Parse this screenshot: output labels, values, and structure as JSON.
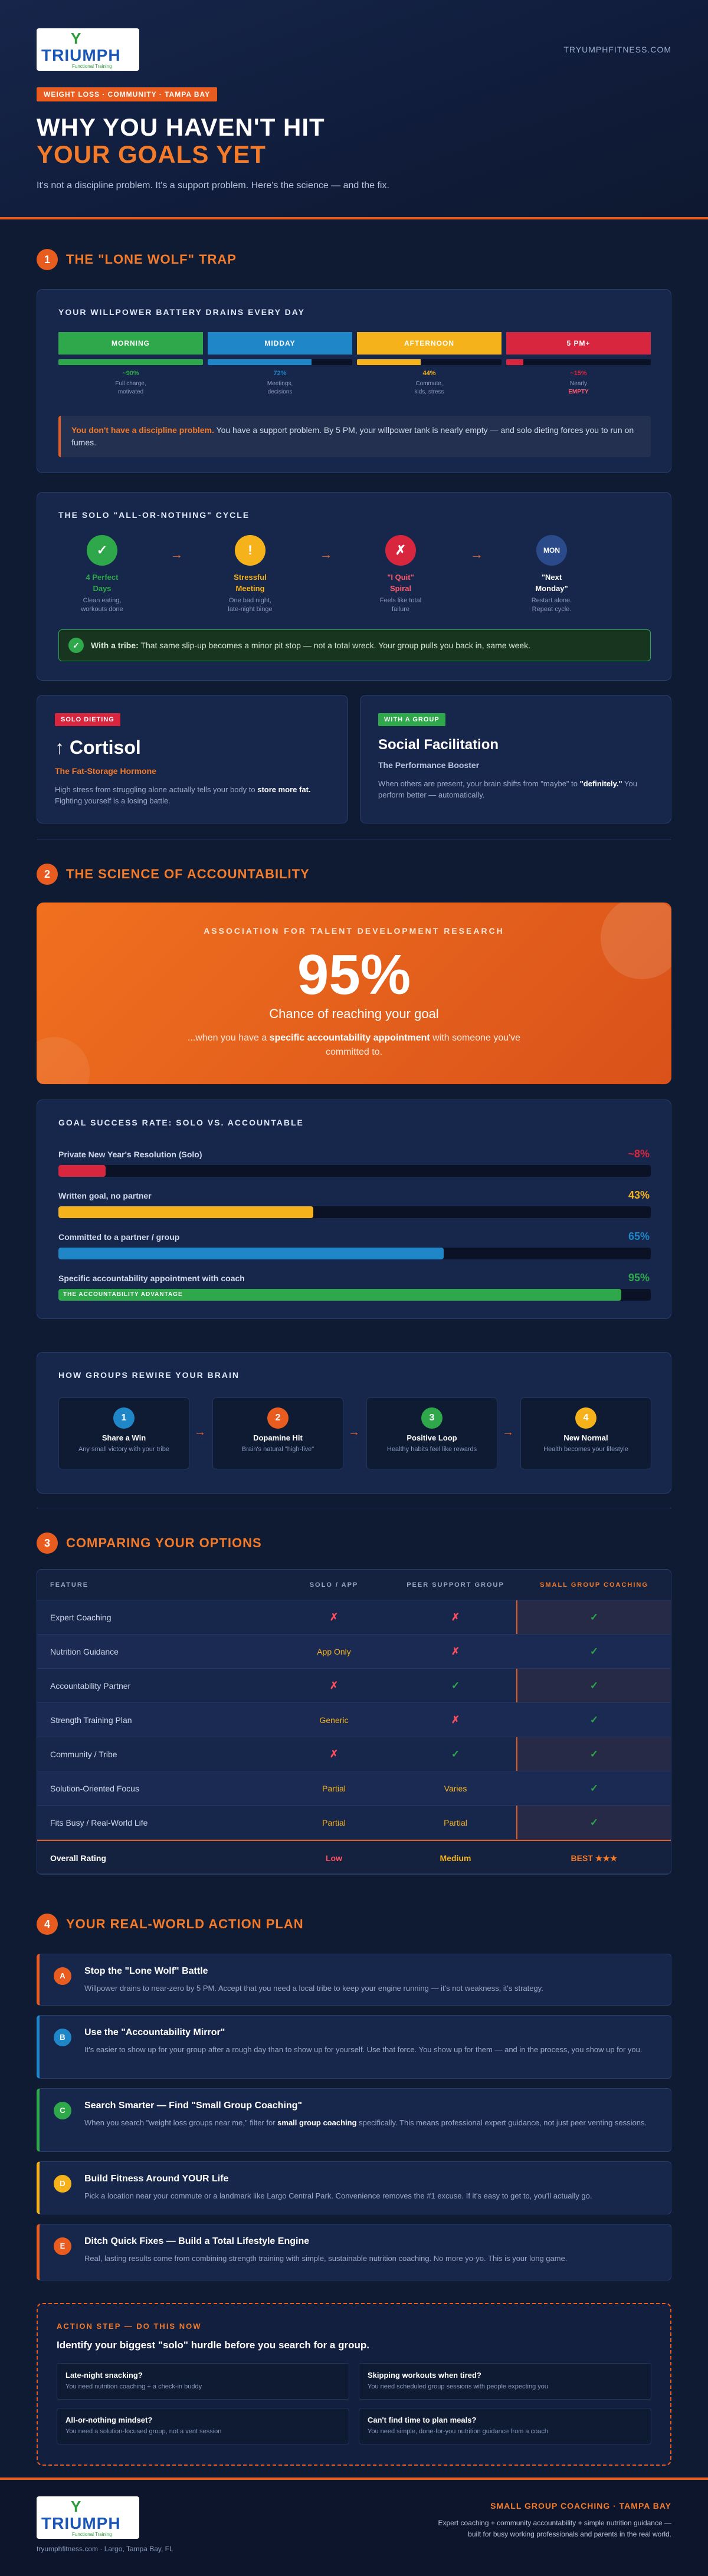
{
  "brand": {
    "logo_mark": "Y",
    "logo_word": "TRIUMPH",
    "logo_tag": "Functional Training",
    "site": "TRYUMPHFITNESS.COM"
  },
  "hero": {
    "chip": "WEIGHT LOSS · COMMUNITY · TAMPA BAY",
    "title_a": "WHY YOU HAVEN'T HIT",
    "title_b": "YOUR GOALS YET",
    "sub": "It's not a discipline problem. It's a support problem. Here's the science — and the fix."
  },
  "s1": {
    "num": "1",
    "title": "THE \"LONE WOLF\" TRAP",
    "battery": {
      "title": "YOUR WILLPOWER BATTERY DRAINS EVERY DAY",
      "cols": [
        {
          "label": "MORNING",
          "color": "#2ea84a",
          "level": 1.0,
          "pct": "~90%",
          "d1": "Full charge,",
          "d2": "motivated"
        },
        {
          "label": "MIDDAY",
          "color": "#1f86c7",
          "level": 0.72,
          "pct": "72%",
          "d1": "Meetings,",
          "d2": "decisions"
        },
        {
          "label": "AFTERNOON",
          "color": "#f5b21b",
          "level": 0.44,
          "pct": "44%",
          "d1": "Commute,",
          "d2": "kids, stress"
        },
        {
          "label": "5 PM+",
          "color": "#d7263d",
          "level": 0.12,
          "pct": "~15%",
          "d1": "Nearly",
          "d2": "EMPTY"
        }
      ],
      "callout_b": "You don't have a discipline problem.",
      "callout": " You have a support problem. By 5 PM, your willpower tank is nearly empty — and solo dieting forces you to run on fumes."
    },
    "cycle": {
      "title": "THE SOLO \"ALL-OR-NOTHING\" CYCLE",
      "steps": [
        {
          "icon": "✓",
          "color": "#2ea84a",
          "tc": "#2ea84a",
          "l1": "4 Perfect",
          "l2": "Days",
          "d1": "Clean eating,",
          "d2": "workouts done"
        },
        {
          "icon": "!",
          "color": "#f5b21b",
          "tc": "#f5b21b",
          "l1": "Stressful",
          "l2": "Meeting",
          "d1": "One bad night,",
          "d2": "late-night binge"
        },
        {
          "icon": "✗",
          "color": "#d7263d",
          "tc": "#ff5a6e",
          "l1": "\"I Quit\"",
          "l2": "Spiral",
          "d1": "Feels like total",
          "d2": "failure"
        },
        {
          "icon": "MON",
          "color": "#2a4a8a",
          "tc": "#ffffff",
          "l1": "\"Next",
          "l2": "Monday\"",
          "d1": "Restart alone.",
          "d2": "Repeat cycle."
        }
      ],
      "arrow": "→",
      "tribe_b": "With a tribe:",
      "tribe": " That same slip-up becomes a minor pit stop — not a total wreck. Your group pulls you back in, same week."
    },
    "solo": {
      "pill": "SOLO DIETING",
      "big": "↑ Cortisol",
      "sub": "The Fat-Storage Hormone",
      "d1": "High stress from struggling alone actually tells your body to ",
      "d1b": "store more fat.",
      "d2": " Fighting yourself is a losing battle."
    },
    "group": {
      "pill": "WITH A GROUP",
      "big": "Social Facilitation",
      "sub": "The Performance Booster",
      "d1": "When others are present, your brain shifts from \"maybe\" to ",
      "d1b": "\"definitely.\"",
      "d2": " You perform better — automatically."
    }
  },
  "s2": {
    "num": "2",
    "title": "THE SCIENCE OF ACCOUNTABILITY",
    "hero": {
      "kicker": "ASSOCIATION FOR TALENT DEVELOPMENT RESEARCH",
      "pct": "95%",
      "cap": "Chance of reaching your goal",
      "w1": "...when you have a ",
      "wb": "specific accountability appointment",
      "w2": " with someone you've",
      "w3": "committed to."
    },
    "chart_data": {
      "type": "bar",
      "title": "GOAL SUCCESS RATE: SOLO VS. ACCOUNTABLE",
      "categories": [
        "Private New Year's Resolution (Solo)",
        "Written goal, no partner",
        "Committed to a partner / group",
        "Specific accountability appointment with coach"
      ],
      "values": [
        8,
        43,
        65,
        95
      ],
      "value_labels": [
        "~8%",
        "43%",
        "65%",
        "95%"
      ],
      "colors": [
        "#d7263d",
        "#f5b21b",
        "#1f86c7",
        "#2ea84a"
      ],
      "tag": "THE ACCOUNTABILITY ADVANTAGE",
      "ylim": [
        0,
        100
      ]
    },
    "brain": {
      "title": "HOW GROUPS REWIRE YOUR BRAIN",
      "steps": [
        {
          "n": "1",
          "color": "#1f86c7",
          "l": "Share a Win",
          "d": "Any small victory with your tribe"
        },
        {
          "n": "2",
          "color": "#e85d1f",
          "l": "Dopamine Hit",
          "d": "Brain's natural \"high-five\""
        },
        {
          "n": "3",
          "color": "#2ea84a",
          "l": "Positive Loop",
          "d": "Healthy habits feel like rewards"
        },
        {
          "n": "4",
          "color": "#f5b21b",
          "l": "New Normal",
          "d": "Health becomes your lifestyle"
        }
      ],
      "arrow": "→"
    }
  },
  "s3": {
    "num": "3",
    "title": "COMPARING YOUR OPTIONS",
    "headers": [
      "FEATURE",
      "SOLO / APP",
      "PEER SUPPORT GROUP",
      "SMALL GROUP COACHING"
    ],
    "rows": [
      [
        "Expert Coaching",
        "✗",
        "✗",
        "✓"
      ],
      [
        "Nutrition Guidance",
        "App Only",
        "✗",
        "✓"
      ],
      [
        "Accountability Partner",
        "✗",
        "✓",
        "✓"
      ],
      [
        "Strength Training Plan",
        "Generic",
        "✗",
        "✓"
      ],
      [
        "Community / Tribe",
        "✗",
        "✓",
        "✓"
      ],
      [
        "Solution-Oriented Focus",
        "Partial",
        "Varies",
        "✓"
      ],
      [
        "Fits Busy / Real-World Life",
        "Partial",
        "Partial",
        "✓"
      ]
    ],
    "overall": [
      "Overall Rating",
      "Low",
      "Medium",
      "BEST ★★★"
    ],
    "colors": {
      "x": "#ff4d5e",
      "check": "#2ea84a",
      "partial": "#f5b21b",
      "low": "#ff4d5e",
      "medium": "#f5b21b",
      "best": "#f47b2a"
    }
  },
  "s4": {
    "num": "4",
    "title": "YOUR REAL-WORLD ACTION PLAN",
    "items": [
      {
        "letter": "A",
        "color": "#e85d1f",
        "t": "Stop the \"Lone Wolf\" Battle",
        "d": "Willpower drains to near-zero by 5 PM. Accept that you need a local tribe to keep your engine running — it's not weakness, it's strategy."
      },
      {
        "letter": "B",
        "color": "#1f86c7",
        "t": "Use the \"Accountability Mirror\"",
        "d": "It's easier to show up for your group after a rough day than to show up for yourself. Use that force. You show up for them — and in the process, you show up for you."
      },
      {
        "letter": "C",
        "color": "#2ea84a",
        "t": "Search Smarter — Find \"Small Group Coaching\"",
        "d1": "When you search \"weight loss groups near me,\" filter for ",
        "db": "small group coaching",
        "d2": " specifically. This means professional expert guidance, not just peer venting sessions."
      },
      {
        "letter": "D",
        "color": "#f5b21b",
        "t": "Build Fitness Around YOUR Life",
        "d": "Pick a location near your commute or a landmark like Largo Central Park. Convenience removes the #1 excuse. If it's easy to get to, you'll actually go."
      },
      {
        "letter": "E",
        "color": "#e85d1f",
        "t": "Ditch Quick Fixes — Build a Total Lifestyle Engine",
        "d": "Real, lasting results come from combining strength training with simple, sustainable nutrition coaching. No more yo-yo. This is your long game."
      }
    ],
    "step": {
      "kicker": "ACTION STEP — DO THIS NOW",
      "q": "Identify your biggest \"solo\" hurdle before you search for a group.",
      "boxes": [
        {
          "a": "Late-night snacking?",
          "b": "You need nutrition coaching + a check-in buddy"
        },
        {
          "a": "Skipping workouts when tired?",
          "b": "You need scheduled group sessions with people expecting you"
        },
        {
          "a": "All-or-nothing mindset?",
          "b": "You need a solution-focused group, not a vent session"
        },
        {
          "a": "Can't find time to plan meals?",
          "b": "You need simple, done-for-you nutrition guidance from a coach"
        }
      ]
    }
  },
  "footer": {
    "left": "tryumphfitness.com  ·  Largo, Tampa Bay, FL",
    "r1": "SMALL GROUP COACHING · TAMPA BAY",
    "r2": "Expert coaching + community accountability + simple nutrition guidance — built for busy working professionals and parents in the real world."
  }
}
